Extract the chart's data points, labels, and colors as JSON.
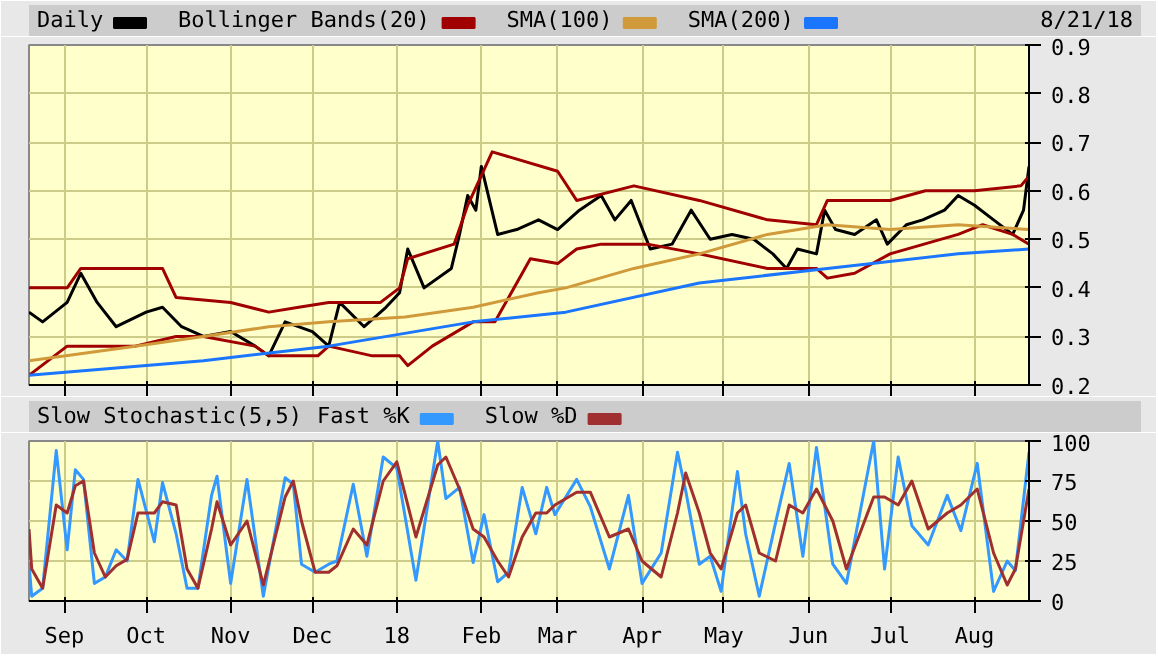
{
  "chart_data": [
    {
      "type": "line",
      "annotations": [
        "8/21/18"
      ],
      "xlim": [
        "2017-08-19",
        "2018-08-21"
      ],
      "ylim": [
        0.2,
        0.9
      ],
      "yticks": [
        0.2,
        0.3,
        0.4,
        0.5,
        0.6,
        0.7,
        0.8,
        0.9
      ],
      "xticks": [
        {
          "value": "2017-09-01",
          "label": null
        },
        {
          "value": "2017-10-01",
          "label": null
        },
        {
          "value": "2017-11-01",
          "label": null
        },
        {
          "value": "2017-12-01",
          "label": null
        },
        {
          "value": "2018-01-01",
          "label": null
        },
        {
          "value": "2018-02-01",
          "label": null
        },
        {
          "value": "2018-03-01",
          "label": null
        },
        {
          "value": "2018-04-01",
          "label": null
        },
        {
          "value": "2018-05-01",
          "label": null
        },
        {
          "value": "2018-06-01",
          "label": null
        },
        {
          "value": "2018-07-01",
          "label": null
        },
        {
          "value": "2018-08-01",
          "label": null
        }
      ],
      "tick_labels": "y",
      "grid": true,
      "legend": "top",
      "series": [
        {
          "name": "Daily",
          "color": "#000000",
          "x": [
            "2017-08-19",
            "2017-08-24",
            "2017-09-02",
            "2017-09-07",
            "2017-09-13",
            "2017-09-20",
            "2017-10-01",
            "2017-10-07",
            "2017-10-14",
            "2017-10-22",
            "2017-11-01",
            "2017-11-10",
            "2017-11-15",
            "2017-11-21",
            "2017-12-01",
            "2017-12-07",
            "2017-12-11",
            "2017-12-20",
            "2017-12-28",
            "2018-01-02",
            "2018-01-05",
            "2018-01-11",
            "2018-01-21",
            "2018-01-24",
            "2018-01-27",
            "2018-01-30",
            "2018-02-01",
            "2018-02-07",
            "2018-02-14",
            "2018-02-22",
            "2018-03-01",
            "2018-03-09",
            "2018-03-17",
            "2018-03-22",
            "2018-03-28",
            "2018-04-04",
            "2018-04-12",
            "2018-04-19",
            "2018-04-26",
            "2018-05-04",
            "2018-05-12",
            "2018-05-19",
            "2018-05-24",
            "2018-05-28",
            "2018-06-04",
            "2018-06-07",
            "2018-06-11",
            "2018-06-18",
            "2018-06-26",
            "2018-06-30",
            "2018-07-07",
            "2018-07-13",
            "2018-07-21",
            "2018-07-26",
            "2018-08-01",
            "2018-08-08",
            "2018-08-15",
            "2018-08-19",
            "2018-08-21"
          ],
          "values": [
            0.35,
            0.33,
            0.37,
            0.43,
            0.37,
            0.32,
            0.35,
            0.36,
            0.32,
            0.3,
            0.31,
            0.28,
            0.26,
            0.33,
            0.31,
            0.28,
            0.37,
            0.32,
            0.36,
            0.39,
            0.48,
            0.4,
            0.44,
            0.51,
            0.59,
            0.56,
            0.65,
            0.51,
            0.52,
            0.54,
            0.52,
            0.56,
            0.59,
            0.54,
            0.58,
            0.48,
            0.49,
            0.56,
            0.5,
            0.51,
            0.5,
            0.47,
            0.44,
            0.48,
            0.47,
            0.56,
            0.52,
            0.51,
            0.54,
            0.49,
            0.53,
            0.54,
            0.56,
            0.59,
            0.57,
            0.54,
            0.51,
            0.56,
            0.65
          ]
        },
        {
          "name": "Bollinger Bands(20)",
          "color": "#a00000",
          "x": [
            "2017-08-19",
            "2017-09-02",
            "2017-09-07",
            "2017-10-07",
            "2017-10-12",
            "2017-11-01",
            "2017-11-15",
            "2017-11-26",
            "2017-12-07",
            "2017-12-26",
            "2018-01-02",
            "2018-01-05",
            "2018-01-22",
            "2018-01-27",
            "2018-02-05",
            "2018-03-01",
            "2018-03-08",
            "2018-03-29",
            "2018-04-22",
            "2018-05-17",
            "2018-06-04",
            "2018-06-08",
            "2018-07-01",
            "2018-07-14",
            "2018-08-01",
            "2018-08-18",
            "2018-08-21"
          ],
          "values": [
            0.4,
            0.4,
            0.44,
            0.44,
            0.38,
            0.37,
            0.35,
            0.36,
            0.37,
            0.37,
            0.4,
            0.46,
            0.49,
            0.57,
            0.68,
            0.64,
            0.58,
            0.61,
            0.58,
            0.54,
            0.53,
            0.58,
            0.58,
            0.6,
            0.6,
            0.61,
            0.63
          ]
        },
        {
          "color": "#a00000",
          "x": [
            "2017-08-19",
            "2017-09-02",
            "2017-09-27",
            "2017-10-12",
            "2017-10-22",
            "2017-11-10",
            "2017-11-15",
            "2017-12-03",
            "2017-12-07",
            "2017-12-23",
            "2018-01-02",
            "2018-01-05",
            "2018-01-14",
            "2018-01-29",
            "2018-02-06",
            "2018-02-19",
            "2018-03-01",
            "2018-03-08",
            "2018-03-17",
            "2018-04-03",
            "2018-04-22",
            "2018-05-17",
            "2018-06-04",
            "2018-06-08",
            "2018-06-18",
            "2018-07-01",
            "2018-07-26",
            "2018-08-04",
            "2018-08-15",
            "2018-08-21"
          ],
          "values": [
            0.22,
            0.28,
            0.28,
            0.3,
            0.3,
            0.28,
            0.26,
            0.26,
            0.28,
            0.26,
            0.26,
            0.24,
            0.28,
            0.33,
            0.33,
            0.46,
            0.45,
            0.48,
            0.49,
            0.49,
            0.47,
            0.44,
            0.44,
            0.42,
            0.43,
            0.47,
            0.51,
            0.53,
            0.51,
            0.49
          ]
        },
        {
          "name": "SMA(100)",
          "color": "#d09a3a",
          "x": [
            "2017-08-19",
            "2017-09-27",
            "2017-10-22",
            "2017-11-15",
            "2017-12-07",
            "2018-01-04",
            "2018-01-29",
            "2018-02-22",
            "2018-03-04",
            "2018-03-29",
            "2018-04-22",
            "2018-05-17",
            "2018-06-08",
            "2018-07-01",
            "2018-07-26",
            "2018-08-21"
          ],
          "values": [
            0.25,
            0.28,
            0.3,
            0.32,
            0.33,
            0.34,
            0.36,
            0.39,
            0.4,
            0.44,
            0.47,
            0.51,
            0.53,
            0.52,
            0.53,
            0.52
          ]
        },
        {
          "name": "SMA(200)",
          "color": "#1a75ff",
          "x": [
            "2017-08-19",
            "2017-10-22",
            "2017-12-07",
            "2018-01-29",
            "2018-03-04",
            "2018-04-22",
            "2018-06-08",
            "2018-07-26",
            "2018-08-21"
          ],
          "values": [
            0.22,
            0.25,
            0.28,
            0.33,
            0.35,
            0.41,
            0.44,
            0.47,
            0.48
          ]
        }
      ]
    },
    {
      "type": "line",
      "title": "Slow Stochastic(5,5)",
      "xlim": [
        "2017-08-19",
        "2018-08-21"
      ],
      "ylim": [
        0,
        100
      ],
      "yticks": [
        0,
        25,
        50,
        75,
        100
      ],
      "xticks": [
        {
          "value": "2017-09-01",
          "label": "Sep"
        },
        {
          "value": "2017-10-01",
          "label": "Oct"
        },
        {
          "value": "2017-11-01",
          "label": "Nov"
        },
        {
          "value": "2017-12-01",
          "label": "Dec"
        },
        {
          "value": "2018-01-01",
          "label": "18"
        },
        {
          "value": "2018-02-01",
          "label": "Feb"
        },
        {
          "value": "2018-03-01",
          "label": "Mar"
        },
        {
          "value": "2018-04-01",
          "label": "Apr"
        },
        {
          "value": "2018-05-01",
          "label": "May"
        },
        {
          "value": "2018-06-01",
          "label": "Jun"
        },
        {
          "value": "2018-07-01",
          "label": "Jul"
        },
        {
          "value": "2018-08-01",
          "label": "Aug"
        }
      ],
      "grid": true,
      "legend": "top",
      "x": [
        "2017-08-19",
        "2017-08-20",
        "2017-08-24",
        "2017-08-29",
        "2017-09-02",
        "2017-09-05",
        "2017-09-08",
        "2017-09-12",
        "2017-09-16",
        "2017-09-20",
        "2017-09-24",
        "2017-09-28",
        "2017-10-04",
        "2017-10-07",
        "2017-10-12",
        "2017-10-16",
        "2017-10-20",
        "2017-10-25",
        "2017-10-27",
        "2017-11-01",
        "2017-11-07",
        "2017-11-13",
        "2017-11-21",
        "2017-11-24",
        "2017-11-27",
        "2017-12-02",
        "2017-12-07",
        "2017-12-10",
        "2017-12-16",
        "2017-12-21",
        "2017-12-27",
        "2018-01-01",
        "2018-01-08",
        "2018-01-16",
        "2018-01-19",
        "2018-01-24",
        "2018-01-29",
        "2018-02-02",
        "2018-02-07",
        "2018-02-11",
        "2018-02-16",
        "2018-02-21",
        "2018-02-25",
        "2018-02-28",
        "2018-03-08",
        "2018-03-13",
        "2018-03-20",
        "2018-03-27",
        "2018-04-01",
        "2018-04-08",
        "2018-04-14",
        "2018-04-17",
        "2018-04-22",
        "2018-04-26",
        "2018-04-30",
        "2018-05-06",
        "2018-05-09",
        "2018-05-14",
        "2018-05-20",
        "2018-05-25",
        "2018-05-30",
        "2018-06-04",
        "2018-06-10",
        "2018-06-15",
        "2018-06-25",
        "2018-06-29",
        "2018-07-04",
        "2018-07-09",
        "2018-07-15",
        "2018-07-22",
        "2018-07-27",
        "2018-08-02",
        "2018-08-08",
        "2018-08-13",
        "2018-08-16",
        "2018-08-21"
      ],
      "series": [
        {
          "name": "Fast %K",
          "color": "#3399ff",
          "values": [
            23,
            3,
            8,
            94,
            32,
            82,
            76,
            11,
            15,
            32,
            25,
            76,
            37,
            74,
            42,
            8,
            8,
            66,
            78,
            11,
            76,
            3,
            77,
            73,
            23,
            18,
            23,
            25,
            73,
            28,
            90,
            83,
            13,
            100,
            64,
            71,
            24,
            54,
            12,
            18,
            71,
            42,
            71,
            54,
            76,
            59,
            20,
            66,
            11,
            30,
            93,
            69,
            23,
            28,
            6,
            81,
            42,
            3,
            49,
            86,
            28,
            96,
            23,
            11,
            100,
            20,
            90,
            47,
            35,
            66,
            44,
            86,
            6,
            25,
            19,
            93
          ]
        },
        {
          "name": "Slow %D",
          "color": "#a03030",
          "values": [
            45,
            20,
            8,
            60,
            55,
            72,
            75,
            30,
            15,
            22,
            26,
            55,
            55,
            62,
            60,
            20,
            8,
            45,
            62,
            35,
            50,
            10,
            65,
            75,
            50,
            18,
            18,
            22,
            45,
            35,
            75,
            87,
            40,
            85,
            90,
            70,
            45,
            40,
            25,
            15,
            40,
            55,
            55,
            60,
            68,
            68,
            40,
            45,
            25,
            15,
            55,
            80,
            55,
            30,
            20,
            55,
            60,
            30,
            25,
            60,
            55,
            70,
            50,
            20,
            65,
            65,
            60,
            75,
            45,
            55,
            60,
            70,
            30,
            10,
            20,
            70
          ]
        }
      ]
    }
  ]
}
